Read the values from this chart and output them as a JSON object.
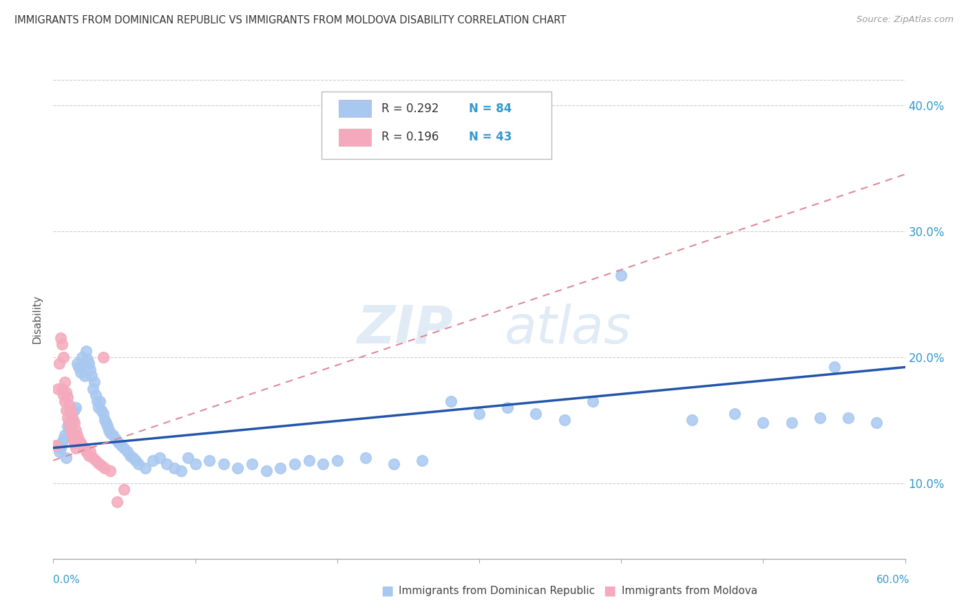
{
  "title": "IMMIGRANTS FROM DOMINICAN REPUBLIC VS IMMIGRANTS FROM MOLDOVA DISABILITY CORRELATION CHART",
  "source": "Source: ZipAtlas.com",
  "ylabel": "Disability",
  "xrange": [
    0.0,
    0.6
  ],
  "yrange": [
    0.04,
    0.42
  ],
  "legend_r1": "R = 0.292",
  "legend_n1": "N = 84",
  "legend_r2": "R = 0.196",
  "legend_n2": "N = 43",
  "color_dr": "#A8C8F0",
  "color_moldova": "#F4AABC",
  "trendline_color_dr": "#2255AA",
  "trendline_color_moldova": "#DD8899",
  "watermark_zip": "ZIP",
  "watermark_atlas": "atlas",
  "scatter_dr": [
    [
      0.003,
      0.13
    ],
    [
      0.004,
      0.125
    ],
    [
      0.005,
      0.128
    ],
    [
      0.006,
      0.132
    ],
    [
      0.007,
      0.135
    ],
    [
      0.008,
      0.138
    ],
    [
      0.009,
      0.12
    ],
    [
      0.01,
      0.145
    ],
    [
      0.011,
      0.142
    ],
    [
      0.012,
      0.148
    ],
    [
      0.013,
      0.155
    ],
    [
      0.014,
      0.15
    ],
    [
      0.015,
      0.158
    ],
    [
      0.016,
      0.16
    ],
    [
      0.017,
      0.195
    ],
    [
      0.018,
      0.192
    ],
    [
      0.019,
      0.188
    ],
    [
      0.02,
      0.2
    ],
    [
      0.021,
      0.195
    ],
    [
      0.022,
      0.185
    ],
    [
      0.023,
      0.205
    ],
    [
      0.024,
      0.198
    ],
    [
      0.025,
      0.195
    ],
    [
      0.026,
      0.19
    ],
    [
      0.027,
      0.185
    ],
    [
      0.028,
      0.175
    ],
    [
      0.029,
      0.18
    ],
    [
      0.03,
      0.17
    ],
    [
      0.031,
      0.165
    ],
    [
      0.032,
      0.16
    ],
    [
      0.033,
      0.165
    ],
    [
      0.034,
      0.158
    ],
    [
      0.035,
      0.155
    ],
    [
      0.036,
      0.15
    ],
    [
      0.037,
      0.148
    ],
    [
      0.038,
      0.145
    ],
    [
      0.039,
      0.142
    ],
    [
      0.04,
      0.14
    ],
    [
      0.042,
      0.138
    ],
    [
      0.044,
      0.135
    ],
    [
      0.046,
      0.132
    ],
    [
      0.048,
      0.13
    ],
    [
      0.05,
      0.128
    ],
    [
      0.052,
      0.125
    ],
    [
      0.054,
      0.122
    ],
    [
      0.056,
      0.12
    ],
    [
      0.058,
      0.118
    ],
    [
      0.06,
      0.115
    ],
    [
      0.065,
      0.112
    ],
    [
      0.07,
      0.118
    ],
    [
      0.075,
      0.12
    ],
    [
      0.08,
      0.115
    ],
    [
      0.085,
      0.112
    ],
    [
      0.09,
      0.11
    ],
    [
      0.095,
      0.12
    ],
    [
      0.1,
      0.115
    ],
    [
      0.11,
      0.118
    ],
    [
      0.12,
      0.115
    ],
    [
      0.13,
      0.112
    ],
    [
      0.14,
      0.115
    ],
    [
      0.15,
      0.11
    ],
    [
      0.16,
      0.112
    ],
    [
      0.17,
      0.115
    ],
    [
      0.18,
      0.118
    ],
    [
      0.19,
      0.115
    ],
    [
      0.2,
      0.118
    ],
    [
      0.22,
      0.12
    ],
    [
      0.24,
      0.115
    ],
    [
      0.26,
      0.118
    ],
    [
      0.28,
      0.165
    ],
    [
      0.3,
      0.155
    ],
    [
      0.32,
      0.16
    ],
    [
      0.34,
      0.155
    ],
    [
      0.36,
      0.15
    ],
    [
      0.38,
      0.165
    ],
    [
      0.4,
      0.265
    ],
    [
      0.45,
      0.15
    ],
    [
      0.48,
      0.155
    ],
    [
      0.5,
      0.148
    ],
    [
      0.52,
      0.148
    ],
    [
      0.54,
      0.152
    ],
    [
      0.55,
      0.192
    ],
    [
      0.56,
      0.152
    ],
    [
      0.58,
      0.148
    ]
  ],
  "scatter_moldova": [
    [
      0.002,
      0.13
    ],
    [
      0.003,
      0.175
    ],
    [
      0.004,
      0.195
    ],
    [
      0.005,
      0.215
    ],
    [
      0.006,
      0.21
    ],
    [
      0.006,
      0.175
    ],
    [
      0.007,
      0.2
    ],
    [
      0.007,
      0.17
    ],
    [
      0.008,
      0.18
    ],
    [
      0.008,
      0.165
    ],
    [
      0.009,
      0.172
    ],
    [
      0.009,
      0.158
    ],
    [
      0.01,
      0.168
    ],
    [
      0.01,
      0.152
    ],
    [
      0.011,
      0.162
    ],
    [
      0.011,
      0.148
    ],
    [
      0.012,
      0.158
    ],
    [
      0.012,
      0.143
    ],
    [
      0.013,
      0.155
    ],
    [
      0.013,
      0.14
    ],
    [
      0.014,
      0.15
    ],
    [
      0.014,
      0.135
    ],
    [
      0.015,
      0.148
    ],
    [
      0.015,
      0.132
    ],
    [
      0.016,
      0.142
    ],
    [
      0.016,
      0.128
    ],
    [
      0.017,
      0.138
    ],
    [
      0.018,
      0.135
    ],
    [
      0.019,
      0.132
    ],
    [
      0.02,
      0.13
    ],
    [
      0.022,
      0.128
    ],
    [
      0.023,
      0.125
    ],
    [
      0.025,
      0.122
    ],
    [
      0.026,
      0.125
    ],
    [
      0.028,
      0.12
    ],
    [
      0.03,
      0.118
    ],
    [
      0.032,
      0.116
    ],
    [
      0.034,
      0.114
    ],
    [
      0.035,
      0.2
    ],
    [
      0.036,
      0.112
    ],
    [
      0.04,
      0.11
    ],
    [
      0.045,
      0.085
    ],
    [
      0.05,
      0.095
    ]
  ],
  "trendline_dr": {
    "x_start": 0.0,
    "x_end": 0.6,
    "y_start": 0.128,
    "y_end": 0.192
  },
  "trendline_moldova": {
    "x_start": 0.0,
    "x_end": 0.6,
    "y_start": 0.118,
    "y_end": 0.345
  }
}
